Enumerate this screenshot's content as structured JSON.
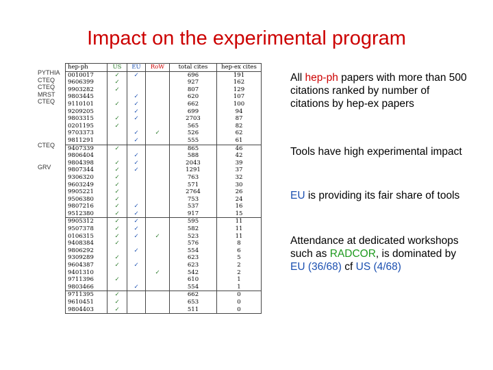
{
  "title": "Impact on the experimental program",
  "side_labels": [
    {
      "text": "PYTHIA",
      "row": 0
    },
    {
      "text": "CTEQ",
      "row": 1
    },
    {
      "text": "CTEQ",
      "row": 2
    },
    {
      "text": "MRST",
      "row": 3
    },
    {
      "text": "CTEQ",
      "row": 4
    },
    {
      "text": "CTEQ",
      "row": 10
    },
    {
      "text": "GRV",
      "row": 13
    }
  ],
  "table": {
    "headers": [
      "hep-ph",
      "US",
      "EU",
      "RoW",
      "total cites",
      "hep-ex cites"
    ],
    "check": "✓",
    "rows": [
      [
        "0010017",
        1,
        1,
        0,
        "696",
        "191"
      ],
      [
        "9606399",
        1,
        0,
        0,
        "927",
        "162"
      ],
      [
        "9903282",
        1,
        0,
        0,
        "807",
        "129"
      ],
      [
        "9803445",
        0,
        1,
        0,
        "620",
        "107"
      ],
      [
        "9110101",
        1,
        1,
        0,
        "662",
        "100"
      ],
      [
        "9209205",
        0,
        1,
        0,
        "699",
        "94"
      ],
      [
        "9803315",
        1,
        1,
        0,
        "2703",
        "87"
      ],
      [
        "0201195",
        1,
        0,
        0,
        "565",
        "82"
      ],
      [
        "9703373",
        0,
        1,
        1,
        "526",
        "62"
      ],
      [
        "9811291",
        0,
        1,
        0,
        "555",
        "61"
      ],
      [
        "9407339",
        1,
        0,
        0,
        "865",
        "46"
      ],
      [
        "9806404",
        0,
        1,
        0,
        "588",
        "42"
      ],
      [
        "9804398",
        1,
        1,
        0,
        "2043",
        "39"
      ],
      [
        "9807344",
        1,
        1,
        0,
        "1291",
        "37"
      ],
      [
        "9306320",
        1,
        0,
        0,
        "763",
        "32"
      ],
      [
        "9603249",
        1,
        0,
        0,
        "571",
        "30"
      ],
      [
        "9905221",
        1,
        0,
        0,
        "2764",
        "26"
      ],
      [
        "9506380",
        1,
        0,
        0,
        "753",
        "24"
      ],
      [
        "9807216",
        1,
        1,
        0,
        "537",
        "16"
      ],
      [
        "9512380",
        1,
        1,
        0,
        "917",
        "15"
      ],
      [
        "9905312",
        1,
        1,
        0,
        "595",
        "11"
      ],
      [
        "9507378",
        1,
        1,
        0,
        "582",
        "11"
      ],
      [
        "0106315",
        1,
        1,
        1,
        "523",
        "11"
      ],
      [
        "9408384",
        1,
        0,
        0,
        "576",
        "8"
      ],
      [
        "9806292",
        0,
        1,
        0,
        "554",
        "6"
      ],
      [
        "9309289",
        1,
        0,
        0,
        "623",
        "5"
      ],
      [
        "9604387",
        1,
        1,
        0,
        "623",
        "2"
      ],
      [
        "9401310",
        0,
        0,
        1,
        "542",
        "2"
      ],
      [
        "9711396",
        1,
        0,
        0,
        "610",
        "1"
      ],
      [
        "9803466",
        0,
        1,
        0,
        "554",
        "1"
      ],
      [
        "9711395",
        1,
        0,
        0,
        "662",
        "0"
      ],
      [
        "9610451",
        1,
        0,
        0,
        "653",
        "0"
      ],
      [
        "9804403",
        1,
        0,
        0,
        "511",
        "0"
      ]
    ],
    "separators_before": [
      10,
      20,
      30
    ]
  },
  "bullets": [
    {
      "parts": [
        {
          "text": "All ",
          "color": ""
        },
        {
          "text": "hep-ph",
          "color": "red"
        },
        {
          "text": " papers with more than 500 citations ranked by number of citations by hep-ex papers",
          "color": ""
        }
      ]
    },
    {
      "parts": [
        {
          "text": "Tools have high experimental impact",
          "color": ""
        }
      ]
    },
    {
      "parts": [
        {
          "text": "EU",
          "color": "blue"
        },
        {
          "text": " is providing its fair share of tools",
          "color": ""
        }
      ]
    },
    {
      "parts": [
        {
          "text": "Attendance at dedicated workshops such as ",
          "color": ""
        },
        {
          "text": "RADCOR",
          "color": "green"
        },
        {
          "text": ", is dominated by ",
          "color": ""
        },
        {
          "text": "EU (36/68)",
          "color": "blue"
        },
        {
          "text": " cf ",
          "color": ""
        },
        {
          "text": "US (4/68)",
          "color": "blue"
        }
      ]
    }
  ],
  "colors": {
    "title": "#cc0000",
    "us_check": "#2a7a2a",
    "eu_check": "#1a4fb0",
    "row_check": "#2a7a2a",
    "highlight_red": "#cc0000",
    "highlight_blue": "#1a4fb0",
    "highlight_green": "#1e9a1e"
  }
}
